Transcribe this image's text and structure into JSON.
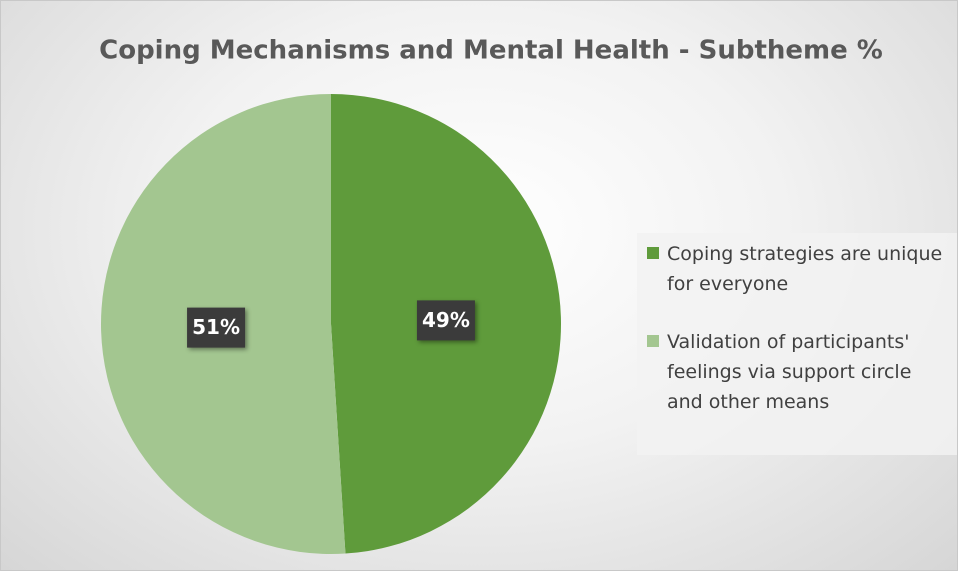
{
  "chart_data": {
    "type": "pie",
    "title": "Coping Mechanisms and Mental Health - Subtheme %",
    "categories": [
      "Coping strategies are unique for everyone",
      "Validation of participants' feelings via support circle and other means"
    ],
    "values": [
      49,
      51
    ],
    "value_labels": [
      "49%",
      "51%"
    ],
    "colors": [
      "#5f9b3b",
      "#a3c690"
    ],
    "legend": "right"
  }
}
